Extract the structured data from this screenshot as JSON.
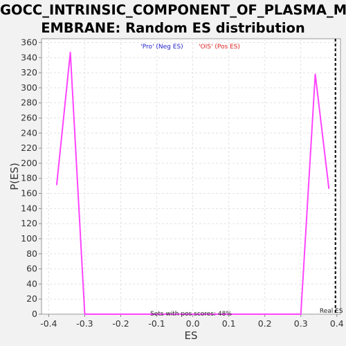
{
  "chart_data": {
    "type": "line",
    "title": "GOCC_INTRINSIC_COMPONENT_OF_PLASMA_M\nEMBRANE: Random ES distribution",
    "xlabel": "ES",
    "ylabel": "P(ES)",
    "xlim": [
      -0.42,
      0.41
    ],
    "ylim": [
      0,
      365
    ],
    "xticks": [
      -0.4,
      -0.3,
      -0.2,
      -0.1,
      0.0,
      0.1,
      0.2,
      0.3,
      0.4
    ],
    "xtick_labels": [
      "-0.4",
      "-0.3",
      "-0.2",
      "-0.1",
      "0.0",
      "0.1",
      "0.2",
      "0.3",
      "0.4"
    ],
    "yticks": [
      0,
      20,
      40,
      60,
      80,
      100,
      120,
      140,
      160,
      180,
      200,
      220,
      240,
      260,
      280,
      300,
      320,
      340,
      360
    ],
    "ytick_labels": [
      "0",
      "20",
      "40",
      "60",
      "80",
      "100",
      "120",
      "140",
      "160",
      "180",
      "200",
      "220",
      "240",
      "260",
      "280",
      "300",
      "320",
      "340",
      "360"
    ],
    "grid": true,
    "series": [
      {
        "color": "#ff44ff",
        "x": [
          -0.378,
          -0.34,
          -0.3,
          0.3,
          0.34,
          0.378
        ],
        "y": [
          171,
          347,
          0,
          0,
          318,
          166
        ]
      }
    ],
    "reference_line": {
      "x": 0.396,
      "label": "Real ES",
      "color": "#000000",
      "style": "dashed"
    },
    "legend": [
      {
        "label": "'Pro' (Neg ES)",
        "color": "#2222cc"
      },
      {
        "label": "'OIS' (Pos ES)",
        "color": "#dd2222"
      }
    ],
    "legend_position": "top-center",
    "annotation": "Sets with pos scores: 48%"
  }
}
